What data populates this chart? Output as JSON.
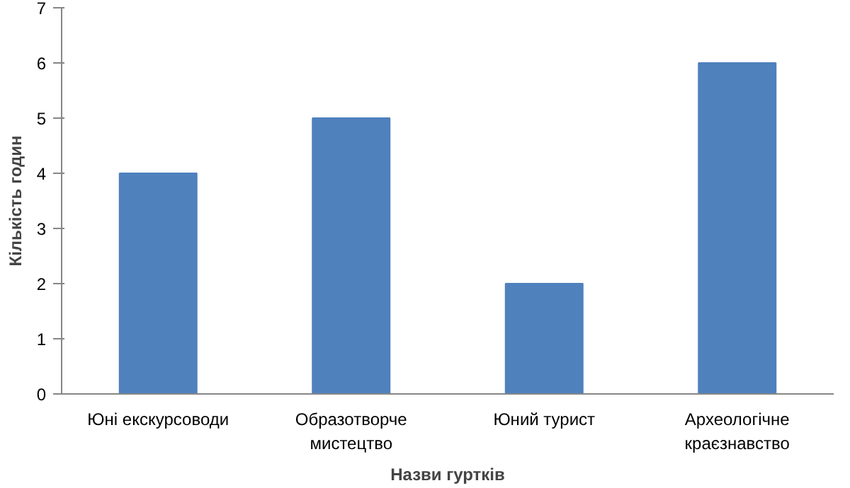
{
  "chart_data": {
    "type": "bar",
    "xlabel": "Назви гуртків",
    "ylabel": "Кількість годин",
    "categories": [
      "Юні екскурсоводи",
      "Образотворче мистецтво",
      "Юний турист",
      "Археологічне краєзнавство"
    ],
    "values": [
      4,
      5,
      2,
      6
    ],
    "color": "#4f81bd",
    "ylim": [
      0,
      7
    ],
    "yticks": [
      0,
      1,
      2,
      3,
      4,
      5,
      6,
      7
    ],
    "grid": false
  }
}
